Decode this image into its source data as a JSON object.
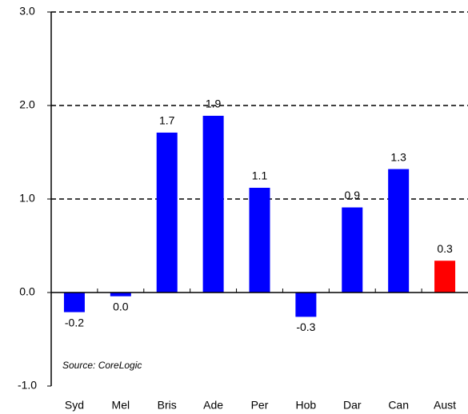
{
  "chart_data": {
    "type": "bar",
    "categories": [
      "Syd",
      "Mel",
      "Bris",
      "Ade",
      "Per",
      "Hob",
      "Dar",
      "Can",
      "Aust"
    ],
    "values": [
      -0.21,
      -0.04,
      1.71,
      1.89,
      1.12,
      -0.26,
      0.91,
      1.32,
      0.34
    ],
    "value_labels": [
      "-0.2",
      "0.0",
      "1.7",
      "1.9",
      "1.1",
      "-0.3",
      "0.9",
      "1.3",
      "0.3"
    ],
    "colors": [
      "#0000ff",
      "#0000ff",
      "#0000ff",
      "#0000ff",
      "#0000ff",
      "#0000ff",
      "#0000ff",
      "#0000ff",
      "#ff0000"
    ],
    "ylim": [
      -1,
      3
    ],
    "yticks": [
      {
        "value": -1,
        "label": "-1.0"
      },
      {
        "value": 0,
        "label": "0.0"
      },
      {
        "value": 1,
        "label": "1.0"
      },
      {
        "value": 2,
        "label": "2.0"
      },
      {
        "value": 3,
        "label": "3.0"
      }
    ],
    "grid": true,
    "annotation": "Source: CoreLogic"
  }
}
